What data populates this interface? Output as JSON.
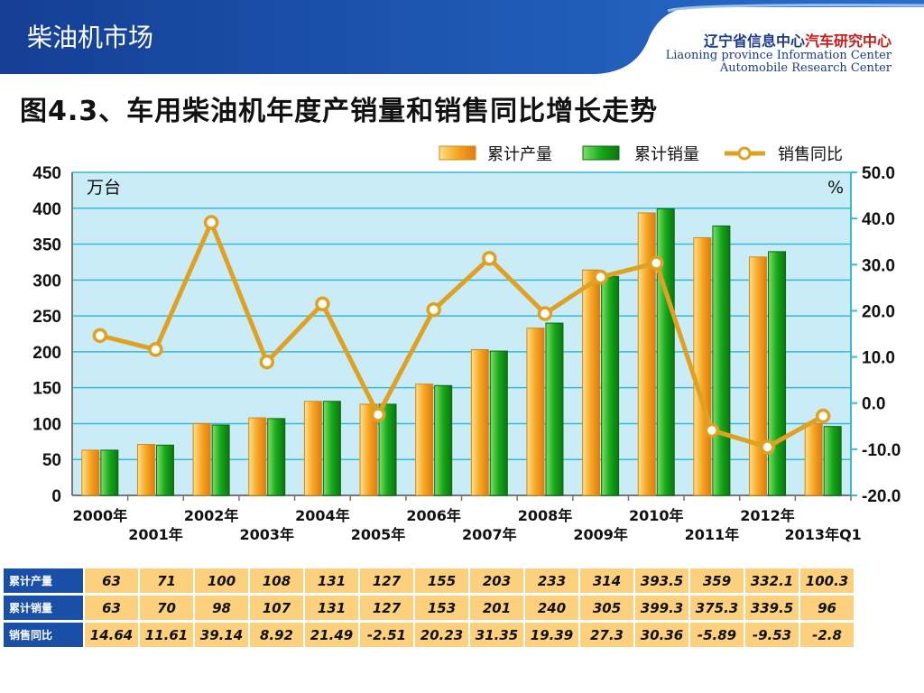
{
  "header": {
    "section_title": "柴油机市场",
    "org_cn_a": "辽宁省信息中心",
    "org_cn_b": "汽车研究中心",
    "org_en_1": "Liaoning province Information Center",
    "org_en_2": "Automobile Research Center"
  },
  "colors": {
    "header_blue": "#1b4fa6",
    "production_bar": "#f5a623",
    "sales_bar": "#16a81a",
    "yoy_line": "#e0a020",
    "plot_bg": "#c9ecf7",
    "grid": "#38b9d8",
    "table_cell": "#fcd07c",
    "row_header": "#1a4fa8"
  },
  "chart_data": {
    "type": "bar",
    "title": "图4.3、车用柴油机年度产销量和销售同比增长走势",
    "categories": [
      "2000年",
      "2001年",
      "2002年",
      "2003年",
      "2004年",
      "2005年",
      "2006年",
      "2007年",
      "2008年",
      "2009年",
      "2010年",
      "2011年",
      "2012年",
      "2013年Q1"
    ],
    "series": [
      {
        "name": "累计产量",
        "type": "bar",
        "axis": "left",
        "values": [
          63,
          71,
          100,
          108,
          131,
          127,
          155,
          203,
          233,
          314,
          393.5,
          359,
          332.1,
          100.3
        ]
      },
      {
        "name": "累计销量",
        "type": "bar",
        "axis": "left",
        "values": [
          63,
          70,
          98,
          107,
          131,
          127,
          153,
          201,
          240,
          305,
          399.3,
          375.3,
          339.5,
          96
        ]
      },
      {
        "name": "销售同比",
        "type": "line",
        "axis": "right",
        "values": [
          14.64,
          11.61,
          39.14,
          8.92,
          21.49,
          -2.51,
          20.23,
          31.35,
          19.39,
          27.3,
          30.36,
          -5.89,
          -9.53,
          -2.8
        ]
      }
    ],
    "y_left": {
      "unit": "万台",
      "ylim": [
        0,
        450
      ],
      "ticks": [
        "0",
        "50",
        "100",
        "150",
        "200",
        "250",
        "300",
        "350",
        "400",
        "450"
      ]
    },
    "y_right": {
      "unit": "%",
      "ylim": [
        -20,
        50
      ],
      "ticks": [
        "-20.0",
        "-10.0",
        "0.0",
        "10.0",
        "20.0",
        "30.0",
        "40.0",
        "50.0"
      ]
    },
    "legend_placement": "top-right",
    "grid": true
  },
  "table": {
    "rows": [
      {
        "label": "累计产量",
        "values": [
          "63",
          "71",
          "100",
          "108",
          "131",
          "127",
          "155",
          "203",
          "233",
          "314",
          "393.5",
          "359",
          "332.1",
          "100.3"
        ]
      },
      {
        "label": "累计销量",
        "values": [
          "63",
          "70",
          "98",
          "107",
          "131",
          "127",
          "153",
          "201",
          "240",
          "305",
          "399.3",
          "375.3",
          "339.5",
          "96"
        ]
      },
      {
        "label": "销售同比",
        "values": [
          "14.64",
          "11.61",
          "39.14",
          "8.92",
          "21.49",
          "-2.51",
          "20.23",
          "31.35",
          "19.39",
          "27.3",
          "30.36",
          "-5.89",
          "-9.53",
          "-2.8"
        ]
      }
    ]
  }
}
